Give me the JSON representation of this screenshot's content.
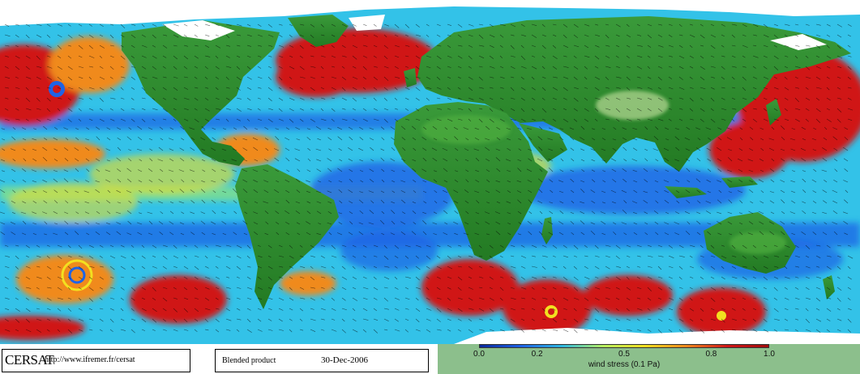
{
  "footer": {
    "logo_text": "CERSAT",
    "url": "http://www.ifremer.fr/cersat",
    "product": "Blended product",
    "date": "30-Dec-2006"
  },
  "legend": {
    "title": "wind stress (0.1 Pa)",
    "ticks": [
      "0.0",
      "0.2",
      "0.5",
      "0.8",
      "1.0"
    ],
    "tick_values": [
      0.0,
      0.2,
      0.5,
      0.8,
      1.0
    ],
    "range": [
      0.0,
      1.0
    ],
    "colormap": [
      "#0a2a9c",
      "#1e63e6",
      "#2fb8e0",
      "#b8f060",
      "#f2e020",
      "#f08a1e",
      "#d01818",
      "#a00d0d"
    ]
  },
  "colors": {
    "land": "#2e8b2e",
    "ice": "#ffffff",
    "ocean_low": "#1e63e6",
    "ocean_high": "#d01818",
    "arrows": "#000000"
  },
  "map": {
    "variable": "wind stress",
    "projection": "equirectangular"
  }
}
